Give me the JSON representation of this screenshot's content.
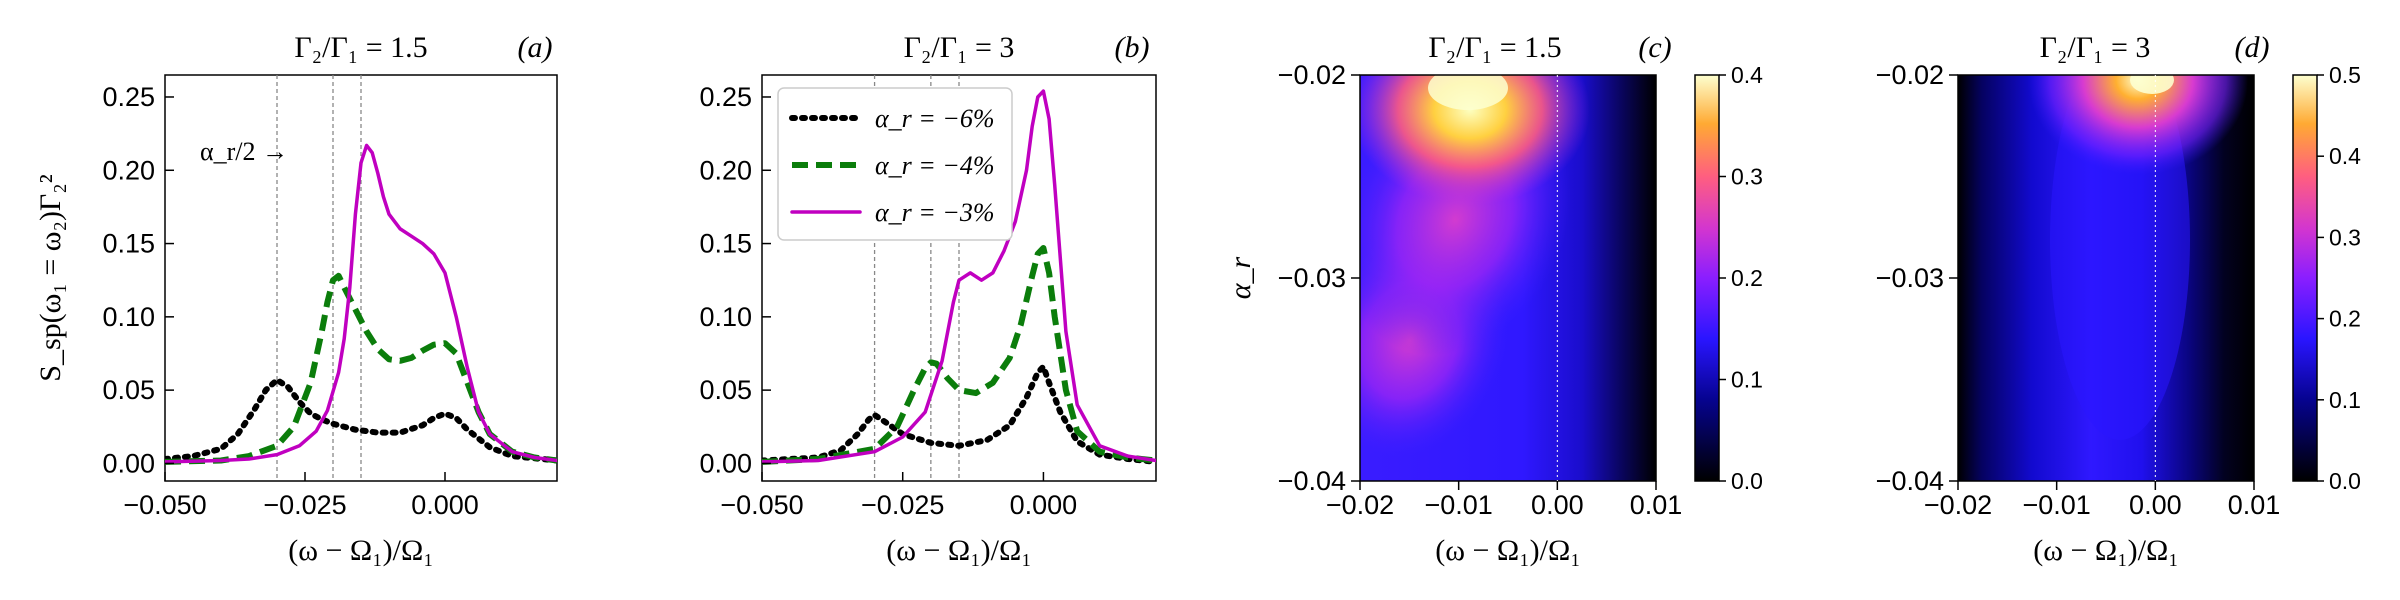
{
  "chart_data": [
    {
      "id": "a",
      "type": "line",
      "title": "Γ₂/Γ₁ = 1.5",
      "panel_label": "(a)",
      "xlabel": "(ω − Ω₁)/Ω₁",
      "ylabel": "S_sp(ω₁ = ω₂)Γ₂²",
      "xlim": [
        -0.05,
        0.02
      ],
      "ylim": [
        -0.012,
        0.265
      ],
      "xticks": [
        -0.05,
        -0.025,
        0.0
      ],
      "xtick_labels": [
        "−0.050",
        "−0.025",
        "0.000"
      ],
      "yticks": [
        0.0,
        0.05,
        0.1,
        0.15,
        0.2,
        0.25
      ],
      "ytick_labels": [
        "0.00",
        "0.05",
        "0.10",
        "0.15",
        "0.20",
        "0.25"
      ],
      "vlines": [
        -0.03,
        -0.02,
        -0.015
      ],
      "annotation": {
        "text": "α_r/2 →",
        "at": [
          -0.04,
          0.2
        ]
      },
      "series": [
        {
          "name": "α_r = −6%",
          "style": "dotted",
          "color": "#000000",
          "x": [
            -0.05,
            -0.045,
            -0.04,
            -0.037,
            -0.034,
            -0.032,
            -0.03,
            -0.028,
            -0.026,
            -0.024,
            -0.022,
            -0.02,
            -0.016,
            -0.012,
            -0.008,
            -0.004,
            -0.002,
            0.0,
            0.002,
            0.004,
            0.008,
            0.012,
            0.02
          ],
          "y": [
            0.003,
            0.005,
            0.01,
            0.02,
            0.037,
            0.05,
            0.057,
            0.052,
            0.042,
            0.034,
            0.03,
            0.027,
            0.023,
            0.021,
            0.021,
            0.026,
            0.031,
            0.034,
            0.031,
            0.023,
            0.011,
            0.005,
            0.002
          ]
        },
        {
          "name": "α_r = −4%",
          "style": "dashed",
          "color": "#0b7d0b",
          "x": [
            -0.05,
            -0.04,
            -0.035,
            -0.03,
            -0.027,
            -0.024,
            -0.022,
            -0.021,
            -0.02,
            -0.019,
            -0.018,
            -0.016,
            -0.014,
            -0.012,
            -0.01,
            -0.008,
            -0.006,
            -0.004,
            -0.002,
            0.0,
            0.002,
            0.004,
            0.006,
            0.008,
            0.012,
            0.016,
            0.02
          ],
          "y": [
            0.001,
            0.002,
            0.005,
            0.012,
            0.025,
            0.055,
            0.09,
            0.11,
            0.125,
            0.128,
            0.12,
            0.105,
            0.09,
            0.078,
            0.071,
            0.07,
            0.072,
            0.077,
            0.081,
            0.082,
            0.075,
            0.055,
            0.035,
            0.02,
            0.008,
            0.004,
            0.002
          ]
        },
        {
          "name": "α_r = −3%",
          "style": "solid",
          "color": "#c000c0",
          "x": [
            -0.05,
            -0.04,
            -0.035,
            -0.03,
            -0.026,
            -0.023,
            -0.021,
            -0.019,
            -0.018,
            -0.017,
            -0.016,
            -0.015,
            -0.014,
            -0.013,
            -0.012,
            -0.011,
            -0.01,
            -0.008,
            -0.006,
            -0.004,
            -0.002,
            0.0,
            0.002,
            0.004,
            0.006,
            0.008,
            0.012,
            0.016,
            0.02
          ],
          "y": [
            0.001,
            0.002,
            0.003,
            0.006,
            0.012,
            0.022,
            0.036,
            0.062,
            0.085,
            0.12,
            0.17,
            0.205,
            0.217,
            0.212,
            0.198,
            0.182,
            0.17,
            0.16,
            0.155,
            0.15,
            0.143,
            0.13,
            0.1,
            0.065,
            0.035,
            0.02,
            0.008,
            0.004,
            0.002
          ]
        }
      ]
    },
    {
      "id": "b",
      "type": "line",
      "title": "Γ₂/Γ₁ = 3",
      "panel_label": "(b)",
      "xlabel": "(ω − Ω₁)/Ω₁",
      "xlim": [
        -0.05,
        0.02
      ],
      "ylim": [
        -0.012,
        0.265
      ],
      "xticks": [
        -0.05,
        -0.025,
        0.0
      ],
      "xtick_labels": [
        "−0.050",
        "−0.025",
        "0.000"
      ],
      "yticks": [
        0.0,
        0.05,
        0.1,
        0.15,
        0.2,
        0.25
      ],
      "ytick_labels": [
        "0.00",
        "0.05",
        "0.10",
        "0.15",
        "0.20",
        "0.25"
      ],
      "vlines": [
        -0.03,
        -0.02,
        -0.015
      ],
      "legend": [
        "α_r = −6%",
        "α_r = −4%",
        "α_r = −3%"
      ],
      "series": [
        {
          "name": "α_r = −6%",
          "style": "dotted",
          "color": "#000000",
          "x": [
            -0.05,
            -0.04,
            -0.036,
            -0.033,
            -0.031,
            -0.03,
            -0.028,
            -0.025,
            -0.02,
            -0.015,
            -0.01,
            -0.006,
            -0.003,
            -0.001,
            0.0,
            0.001,
            0.003,
            0.006,
            0.01,
            0.015,
            0.02
          ],
          "y": [
            0.002,
            0.004,
            0.009,
            0.02,
            0.03,
            0.033,
            0.028,
            0.02,
            0.014,
            0.012,
            0.016,
            0.026,
            0.045,
            0.062,
            0.066,
            0.055,
            0.035,
            0.015,
            0.006,
            0.003,
            0.001
          ]
        },
        {
          "name": "α_r = −4%",
          "style": "dashed",
          "color": "#0b7d0b",
          "x": [
            -0.05,
            -0.04,
            -0.03,
            -0.026,
            -0.023,
            -0.021,
            -0.02,
            -0.019,
            -0.017,
            -0.015,
            -0.012,
            -0.009,
            -0.006,
            -0.004,
            -0.002,
            -0.001,
            0.0,
            0.001,
            0.002,
            0.004,
            0.006,
            0.01,
            0.015,
            0.02
          ],
          "y": [
            0.001,
            0.003,
            0.01,
            0.025,
            0.05,
            0.065,
            0.069,
            0.068,
            0.058,
            0.05,
            0.048,
            0.055,
            0.072,
            0.095,
            0.128,
            0.143,
            0.147,
            0.13,
            0.1,
            0.05,
            0.022,
            0.008,
            0.004,
            0.002
          ]
        },
        {
          "name": "α_r = −3%",
          "style": "solid",
          "color": "#c000c0",
          "x": [
            -0.05,
            -0.04,
            -0.03,
            -0.025,
            -0.021,
            -0.018,
            -0.016,
            -0.015,
            -0.013,
            -0.011,
            -0.009,
            -0.007,
            -0.005,
            -0.003,
            -0.002,
            -0.001,
            0.0,
            0.001,
            0.002,
            0.004,
            0.006,
            0.01,
            0.015,
            0.02
          ],
          "y": [
            0.001,
            0.002,
            0.008,
            0.018,
            0.035,
            0.07,
            0.11,
            0.125,
            0.13,
            0.125,
            0.13,
            0.145,
            0.165,
            0.2,
            0.23,
            0.25,
            0.254,
            0.235,
            0.19,
            0.09,
            0.04,
            0.012,
            0.005,
            0.002
          ]
        }
      ]
    },
    {
      "id": "c",
      "type": "heatmap",
      "title": "Γ₂/Γ₁ = 1.5",
      "panel_label": "(c)",
      "xlabel": "(ω − Ω₁)/Ω₁",
      "ylabel": "α_r",
      "xlim": [
        -0.02,
        0.01
      ],
      "ylim": [
        -0.04,
        -0.02
      ],
      "xtick_labels": [
        "−0.02",
        "−0.01",
        "0.00",
        "0.01"
      ],
      "ytick_labels": [
        "−0.02",
        "−0.03",
        "−0.04"
      ],
      "colorbar": {
        "range": [
          0.0,
          0.4
        ],
        "ticks": [
          "0.0",
          "0.1",
          "0.2",
          "0.3",
          "0.4"
        ],
        "colormap": "gnuplot2"
      },
      "vline": 0.0
    },
    {
      "id": "d",
      "type": "heatmap",
      "title": "Γ₂/Γ₁ = 3",
      "panel_label": "(d)",
      "xlabel": "(ω − Ω₁)/Ω₁",
      "xlim": [
        -0.02,
        0.01
      ],
      "ylim": [
        -0.04,
        -0.02
      ],
      "xtick_labels": [
        "−0.02",
        "−0.01",
        "0.00",
        "0.01"
      ],
      "ytick_labels": [
        "−0.02",
        "−0.03",
        "−0.04"
      ],
      "colorbar": {
        "range": [
          0.0,
          0.5
        ],
        "ticks": [
          "0.0",
          "0.1",
          "0.2",
          "0.3",
          "0.4",
          "0.5"
        ],
        "colormap": "gnuplot2"
      },
      "vline": 0.0
    }
  ]
}
